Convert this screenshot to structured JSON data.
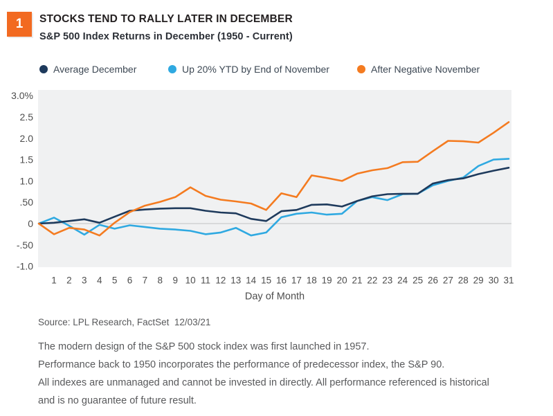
{
  "header": {
    "figure_number": "1",
    "badge_color": "#f26a21",
    "title": "STOCKS TEND TO RALLY LATER IN DECEMBER",
    "subtitle": "S&P 500 Index Returns in December (1950 - Current)"
  },
  "legend": [
    {
      "label": "Average December",
      "color": "#1e3a5c"
    },
    {
      "label": "Up 20% YTD by End of November",
      "color": "#2fa9e1"
    },
    {
      "label": "After Negative November",
      "color": "#f47b20"
    }
  ],
  "chart_data": {
    "type": "line",
    "title": "S&P 500 Index Returns in December (1950 - Current)",
    "xlabel": "Day of Month",
    "ylabel": "",
    "x_tick_labels": [
      "1",
      "2",
      "3",
      "4",
      "5",
      "6",
      "7",
      "8",
      "9",
      "10",
      "11",
      "12",
      "13",
      "14",
      "15",
      "16",
      "17",
      "18",
      "19",
      "20",
      "21",
      "22",
      "23",
      "24",
      "25",
      "26",
      "27",
      "28",
      "29",
      "30",
      "31"
    ],
    "y_ticks": [
      3.0,
      2.5,
      2.0,
      1.5,
      1.0,
      0.5,
      0,
      -0.5,
      -1.0
    ],
    "y_tick_labels": [
      "3.0%",
      "2.5",
      "2.0",
      "1.5",
      "1.0",
      ".50",
      "0",
      "-.50",
      "-1.0"
    ],
    "ylim": [
      -1.0,
      3.0
    ],
    "grid": false,
    "legend_position": "top",
    "plot_bg": "#f0f1f2",
    "zero_line_color": "#d8d9da",
    "tick_color": "#4d4d4d",
    "note": "Each series starts at 0% one step before day 1 (month-start baseline); values[0] is that baseline.",
    "series": [
      {
        "name": "Average December",
        "color": "#1e3a5c",
        "values": [
          0,
          0.02,
          0.06,
          0.1,
          0.02,
          0.16,
          0.3,
          0.33,
          0.35,
          0.36,
          0.36,
          0.3,
          0.26,
          0.24,
          0.11,
          0.06,
          0.29,
          0.32,
          0.44,
          0.45,
          0.4,
          0.53,
          0.64,
          0.69,
          0.7,
          0.7,
          0.94,
          1.02,
          1.06,
          1.16,
          1.24,
          1.31
        ]
      },
      {
        "name": "Up 20% YTD by End of November",
        "color": "#2fa9e1",
        "values": [
          0,
          0.14,
          -0.05,
          -0.26,
          -0.03,
          -0.12,
          -0.04,
          -0.08,
          -0.12,
          -0.14,
          -0.17,
          -0.25,
          -0.21,
          -0.1,
          -0.28,
          -0.21,
          0.15,
          0.23,
          0.26,
          0.21,
          0.23,
          0.53,
          0.62,
          0.55,
          0.69,
          0.7,
          0.9,
          1.0,
          1.08,
          1.35,
          1.5,
          1.52
        ]
      },
      {
        "name": "After Negative November",
        "color": "#f47b20",
        "values": [
          0,
          -0.25,
          -0.1,
          -0.14,
          -0.28,
          0.02,
          0.27,
          0.42,
          0.51,
          0.62,
          0.85,
          0.65,
          0.56,
          0.52,
          0.47,
          0.32,
          0.71,
          0.62,
          1.13,
          1.07,
          1.0,
          1.17,
          1.25,
          1.3,
          1.44,
          1.45,
          1.7,
          1.94,
          1.93,
          1.9,
          2.13,
          2.38
        ]
      }
    ]
  },
  "footer": {
    "source": "Source: LPL Research, FactSet  12/03/21",
    "disclosure_lines": [
      "The modern design of the S&P 500 stock index was first launched in 1957.",
      "Performance back to 1950 incorporates the performance of predecessor index, the S&P 90.",
      "All indexes are unmanaged and cannot be invested in directly. All performance referenced is historical",
      "and is no guarantee of future result."
    ]
  }
}
